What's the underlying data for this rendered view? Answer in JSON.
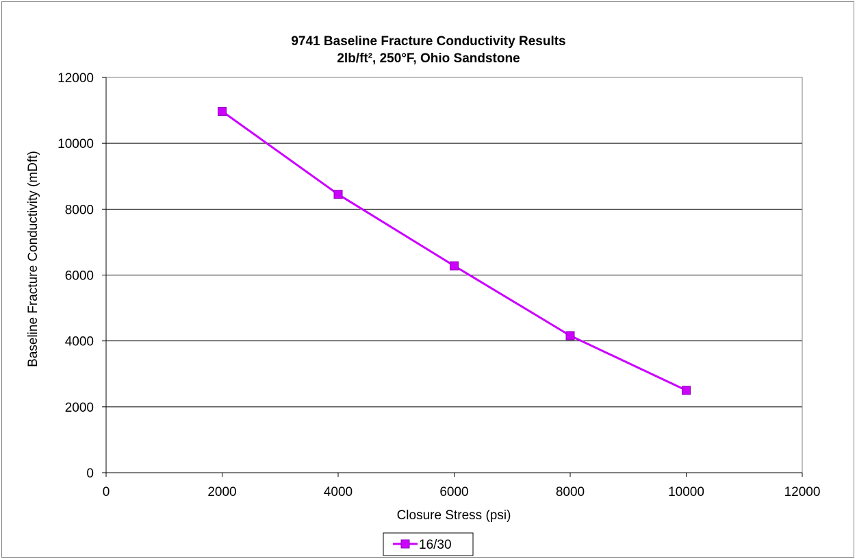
{
  "chart_data": {
    "type": "line",
    "title": "9741 Baseline Fracture Conductivity Results",
    "subtitle": "2lb/ft², 250°F, Ohio Sandstone",
    "xlabel": "Closure Stress (psi)",
    "ylabel": "Baseline Fracture Conductivity (mDft)",
    "xlim": [
      0,
      12000
    ],
    "ylim": [
      0,
      12000
    ],
    "x_ticks": [
      "0",
      "2000",
      "4000",
      "6000",
      "8000",
      "10000",
      "12000"
    ],
    "y_ticks": [
      "0",
      "2000",
      "4000",
      "6000",
      "8000",
      "10000",
      "12000"
    ],
    "grid": "horizontal",
    "legend_position": "bottom",
    "series": [
      {
        "name": "16/30",
        "color": "#cc00ff",
        "marker": "square",
        "x": [
          2000,
          4000,
          6000,
          8000,
          10000
        ],
        "y": [
          10970,
          8450,
          6280,
          4160,
          2500
        ]
      }
    ]
  }
}
